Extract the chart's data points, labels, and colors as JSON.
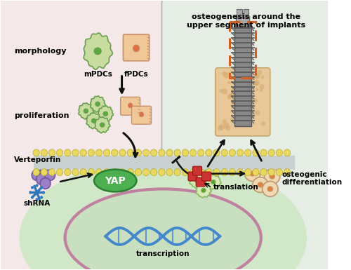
{
  "bg_left_color": "#f5e8e8",
  "bg_right_color": "#e5ede5",
  "title_right": "osteogenesis around the\nupper segment of implants",
  "label_morphology": "morphology",
  "label_mPDCs": "mPDCs",
  "label_fPDCs": "fPDCs",
  "label_proliferation": "proliferation",
  "label_verteporfin": "Verteporfin",
  "label_shRNA": "shRNA",
  "label_YAP": "YAP",
  "label_translation": "translation",
  "label_transcription": "transcription",
  "label_osteogenic": "osteogenic\ndifferentiation",
  "cell_green_fill": "#c8dca0",
  "cell_green_border": "#6a9e50",
  "cell_green_nucleus": "#5aaa40",
  "cell_peach_fill": "#f0c898",
  "cell_peach_border": "#c8906a",
  "cell_peach_nucleus": "#e07040",
  "cell_purple_fill": "#9b7ec8",
  "cell_purple_border": "#6b4e98",
  "yap_green": "#4caf50",
  "membrane_yellow": "#e8d860",
  "implant_gray": "#707070",
  "bone_tan": "#e8c898",
  "dna_blue": "#4488cc",
  "ribosome_red": "#cc3333",
  "arrow_color": "#111111",
  "dashed_orange": "#d06020",
  "cell_body_fill": "#d0e8c8",
  "nucleus_fill": "#c8e0c0",
  "nucleus_border": "#c080a0",
  "mem_gray": "#c8d0d0"
}
